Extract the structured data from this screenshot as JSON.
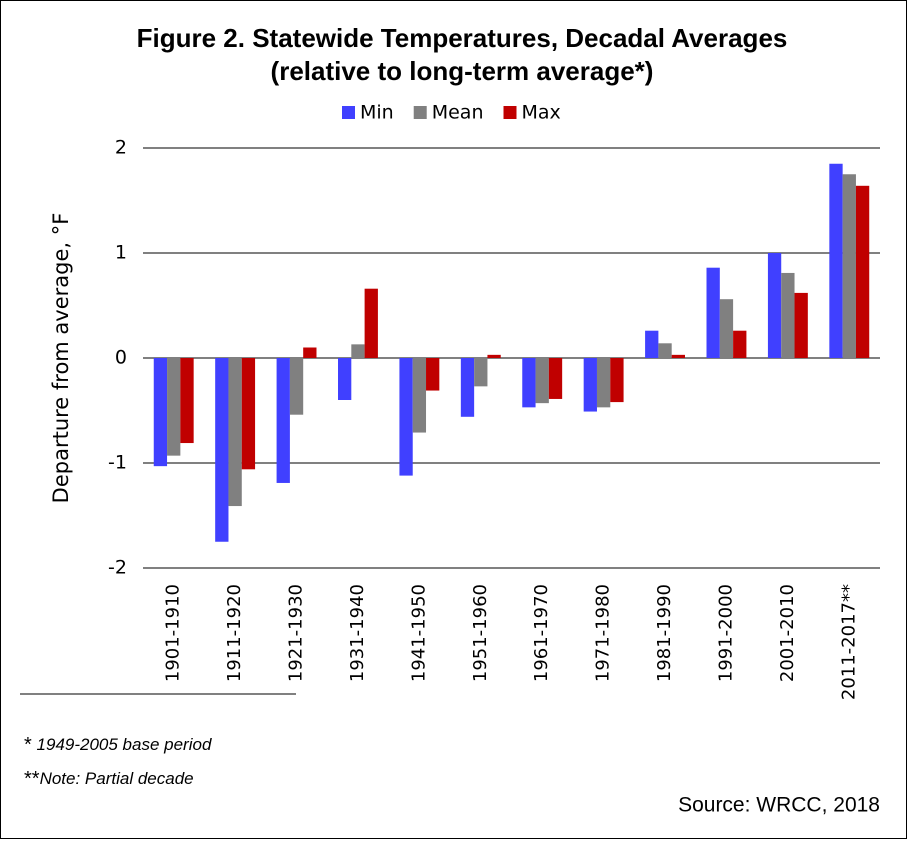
{
  "chart_data": {
    "type": "bar",
    "title": "Figure 2. Statewide Temperatures, Decadal Averages",
    "subtitle": "(relative to long-term average*)",
    "y_label": "Departure from average, °F",
    "categories": [
      "1901-1910",
      "1911-1920",
      "1921-1930",
      "1931-1940",
      "1941-1950",
      "1951-1960",
      "1961-1970",
      "1971-1980",
      "1981-1990",
      "1991-2000",
      "2001-2010",
      "2011-2017**"
    ],
    "series": [
      {
        "name": "Min",
        "color": "#4040ff",
        "values": [
          -1.03,
          -1.75,
          -1.19,
          -0.4,
          -1.12,
          -0.56,
          -0.47,
          -0.51,
          0.26,
          0.86,
          1.0,
          1.85
        ]
      },
      {
        "name": "Mean",
        "color": "#808080",
        "values": [
          -0.93,
          -1.41,
          -0.54,
          0.13,
          -0.71,
          -0.27,
          -0.43,
          -0.47,
          0.14,
          0.56,
          0.81,
          1.75
        ]
      },
      {
        "name": "Max",
        "color": "#c00000",
        "values": [
          -0.81,
          -1.06,
          0.1,
          0.66,
          -0.31,
          0.03,
          -0.39,
          -0.42,
          0.03,
          0.26,
          0.62,
          1.64
        ]
      }
    ],
    "ylim": [
      -2,
      2
    ],
    "yticks": [
      -2,
      -1,
      0,
      1,
      2
    ],
    "grid": true,
    "legend": "top",
    "notes": [
      {
        "marker": "*",
        "text": "1949-2005 base period"
      },
      {
        "marker": "**",
        "text": "Note: Partial decade"
      }
    ],
    "source": "Source: WRCC, 2018"
  }
}
